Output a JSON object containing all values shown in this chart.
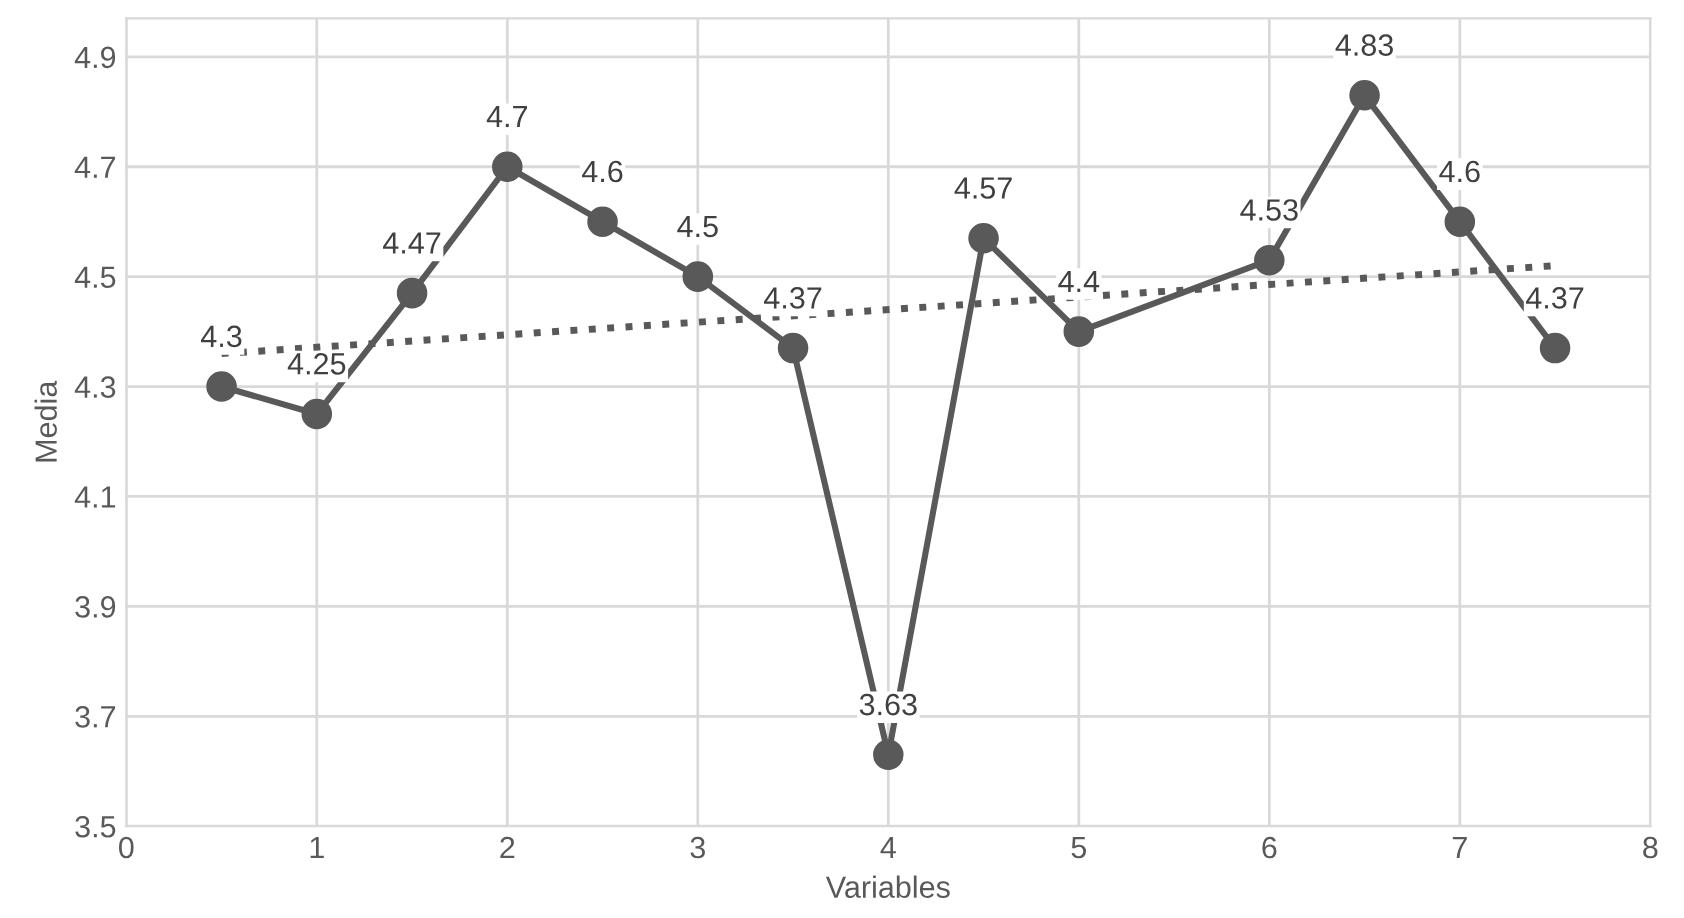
{
  "chart_data": {
    "type": "line",
    "xlabel": "Variables",
    "ylabel": "Media",
    "xlim": [
      0,
      8
    ],
    "xticks": [
      0,
      1,
      2,
      3,
      4,
      5,
      6,
      7,
      8
    ],
    "ylim": [
      3.5,
      4.97
    ],
    "yticks": [
      3.5,
      3.7,
      3.9,
      4.1,
      4.3,
      4.5,
      4.7,
      4.9
    ],
    "grid": true,
    "marker": "circle",
    "line_style": "solid",
    "series": [
      {
        "color": "#595959",
        "x": [
          0.5,
          1,
          1.5,
          2,
          2.5,
          3,
          3.5,
          4,
          4.5,
          5,
          6,
          6.5,
          7,
          7.5
        ],
        "values": [
          4.3,
          4.25,
          4.47,
          4.7,
          4.6,
          4.5,
          4.37,
          3.63,
          4.57,
          4.4,
          4.53,
          4.83,
          4.6,
          4.37
        ],
        "data_labels": true
      },
      {
        "color": "#595959",
        "x": [
          0.5,
          7.5
        ],
        "values": [
          4.36,
          4.52
        ],
        "marker": "none",
        "line_style": "dotted"
      }
    ]
  }
}
